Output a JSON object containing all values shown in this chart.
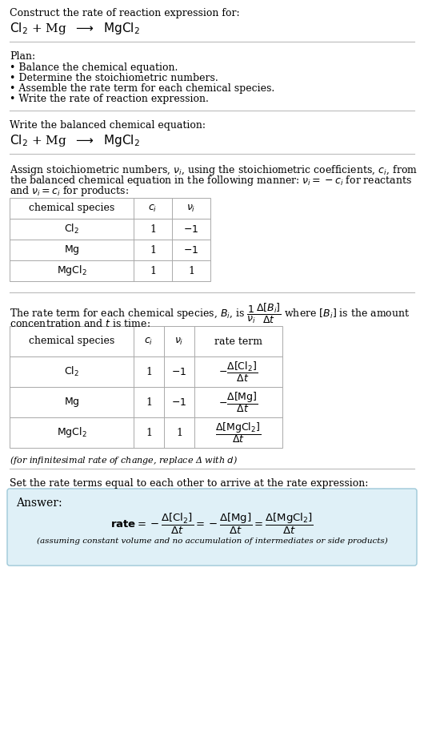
{
  "bg_color": "#ffffff",
  "text_color": "#000000",
  "font_family": "DejaVu Serif",
  "title_line1": "Construct the rate of reaction expression for:",
  "plan_title": "Plan:",
  "plan_items": [
    "• Balance the chemical equation.",
    "• Determine the stoichiometric numbers.",
    "• Assemble the rate term for each chemical species.",
    "• Write the rate of reaction expression."
  ],
  "balanced_label": "Write the balanced chemical equation:",
  "stoich_intro_lines": [
    "Assign stoichiometric numbers, $\\nu_i$, using the stoichiometric coefficients, $c_i$, from",
    "the balanced chemical equation in the following manner: $\\nu_i = -c_i$ for reactants",
    "and $\\nu_i = c_i$ for products:"
  ],
  "table1_col_labels": [
    "chemical species",
    "$c_i$",
    "$\\nu_i$"
  ],
  "table1_rows": [
    [
      "$\\mathrm{Cl_2}$",
      "1",
      "$-1$"
    ],
    [
      "$\\mathrm{Mg}$",
      "1",
      "$-1$"
    ],
    [
      "$\\mathrm{MgCl_2}$",
      "1",
      "1"
    ]
  ],
  "rate_intro_line1": "The rate term for each chemical species, $B_i$, is $\\dfrac{1}{\\nu_i}\\dfrac{\\Delta[B_i]}{\\Delta t}$ where $[B_i]$ is the amount",
  "rate_intro_line2": "concentration and $t$ is time:",
  "table2_col_labels": [
    "chemical species",
    "$c_i$",
    "$\\nu_i$",
    "rate term"
  ],
  "table2_rows": [
    [
      "$\\mathrm{Cl_2}$",
      "1",
      "$-1$",
      "$-\\dfrac{\\Delta[\\mathrm{Cl_2}]}{\\Delta t}$"
    ],
    [
      "$\\mathrm{Mg}$",
      "1",
      "$-1$",
      "$-\\dfrac{\\Delta[\\mathrm{Mg}]}{\\Delta t}$"
    ],
    [
      "$\\mathrm{MgCl_2}$",
      "1",
      "1",
      "$\\dfrac{\\Delta[\\mathrm{MgCl_2}]}{\\Delta t}$"
    ]
  ],
  "infinitesimal_note": "(for infinitesimal rate of change, replace Δ with $d$)",
  "set_equal_text": "Set the rate terms equal to each other to arrive at the rate expression:",
  "answer_box_color": "#dff0f7",
  "answer_box_border": "#9dc8d8",
  "answer_label": "Answer:",
  "rate_expression": "$\\mathbf{rate} = -\\dfrac{\\Delta[\\mathrm{Cl_2}]}{\\Delta t} = -\\dfrac{\\Delta[\\mathrm{Mg}]}{\\Delta t} = \\dfrac{\\Delta[\\mathrm{MgCl_2}]}{\\Delta t}$",
  "footnote": "(assuming constant volume and no accumulation of intermediates or side products)"
}
